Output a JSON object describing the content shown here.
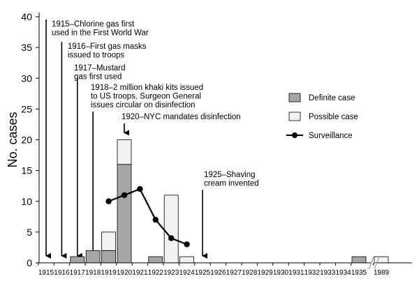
{
  "chart_data": {
    "type": "bar",
    "stacked": true,
    "ylabel": "No. cases",
    "xlabel": "",
    "ylim": [
      0,
      40
    ],
    "yticks": [
      0,
      5,
      10,
      15,
      20,
      25,
      30,
      35,
      40
    ],
    "categories": [
      "1915",
      "1916",
      "1917",
      "1918",
      "1919",
      "1920",
      "1921",
      "1922",
      "1923",
      "1924",
      "1925",
      "1926",
      "1927",
      "1928",
      "1929",
      "1930",
      "1931",
      "1932",
      "1933",
      "1934",
      "1935",
      "1989"
    ],
    "axis_break_between": [
      "1935",
      "1989"
    ],
    "series": [
      {
        "name": "Definite case",
        "kind": "bar",
        "color": "#a6a6a6",
        "values": [
          0,
          0,
          1,
          2,
          2,
          16,
          0,
          1,
          0,
          0,
          0,
          0,
          0,
          0,
          0,
          0,
          0,
          0,
          0,
          0,
          1,
          0
        ]
      },
      {
        "name": "Possible case",
        "kind": "bar",
        "color": "#f2f2f2",
        "values": [
          0,
          0,
          0,
          0,
          3,
          4,
          0,
          0,
          11,
          1,
          0,
          0,
          0,
          0,
          0,
          0,
          0,
          0,
          0,
          0,
          0,
          1
        ]
      },
      {
        "name": "Surveillance",
        "kind": "line",
        "color": "#000000",
        "points": [
          [
            "1919",
            10
          ],
          [
            "1920",
            11
          ],
          [
            "1921",
            12
          ],
          [
            "1922",
            7
          ],
          [
            "1923",
            4
          ],
          [
            "1924",
            3
          ]
        ]
      }
    ],
    "legend_position": "right",
    "annotations": [
      {
        "category": "1915",
        "lines": [
          "1915–Chlorine gas first",
          "used in the First World War"
        ]
      },
      {
        "category": "1916",
        "lines": [
          "1916–First gas masks",
          "issued to troops"
        ]
      },
      {
        "category": "1917",
        "lines": [
          "1917–Mustard",
          "gas first used"
        ]
      },
      {
        "category": "1918",
        "lines": [
          "1918–2 million khaki kits issued",
          "to US troops. Surgeon General",
          "issues circular on disinfection"
        ]
      },
      {
        "category": "1920",
        "lines": [
          "1920–NYC mandates disinfection"
        ]
      },
      {
        "category": "1925",
        "lines": [
          "1925–Shaving",
          "cream invented"
        ]
      }
    ]
  }
}
